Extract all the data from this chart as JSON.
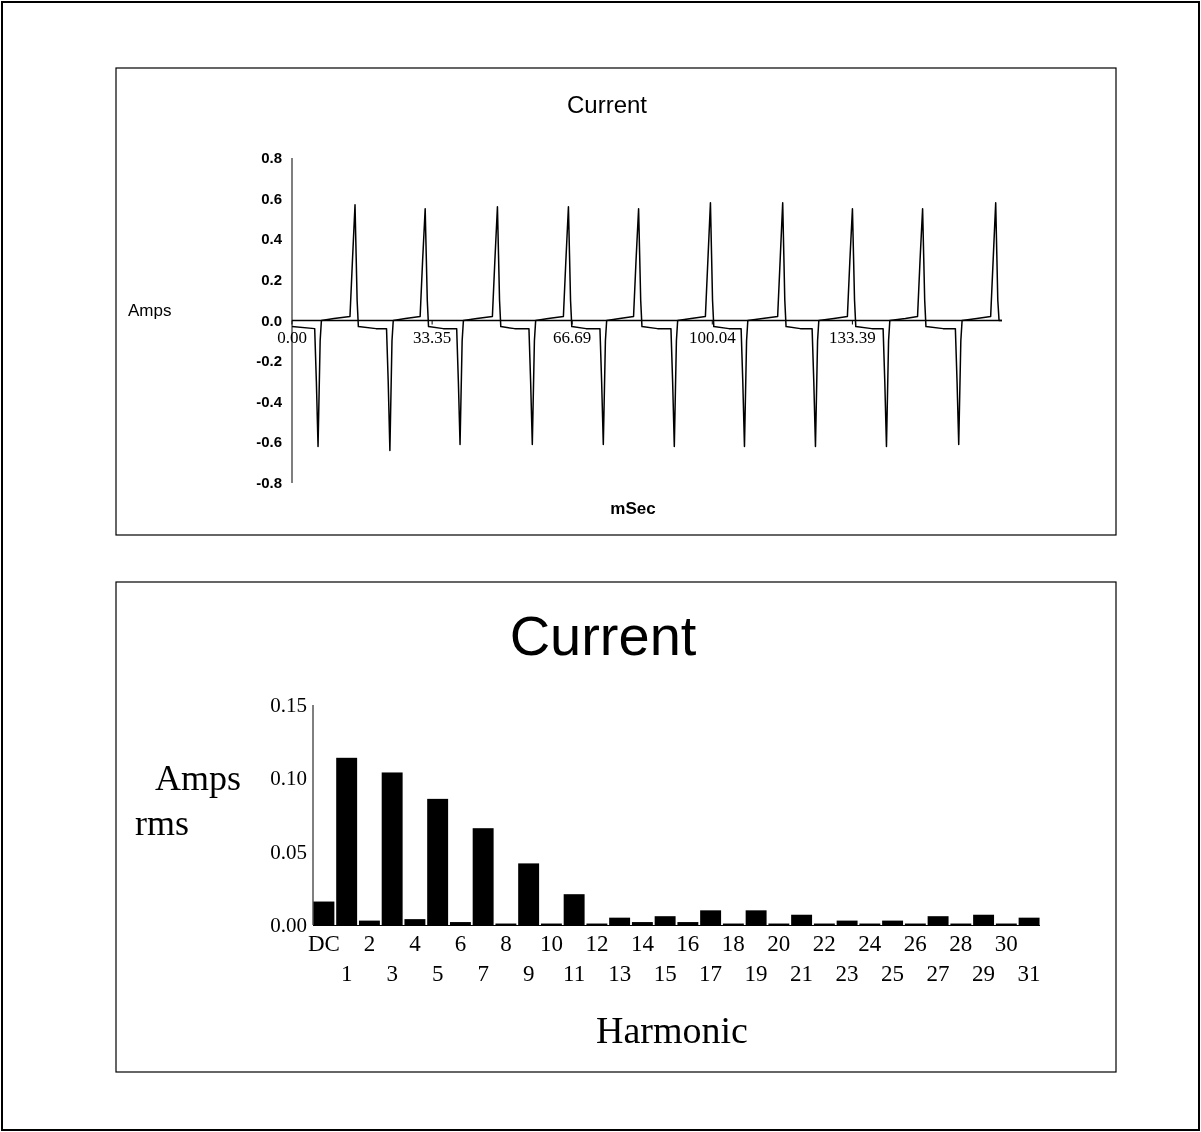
{
  "chart_data": [
    {
      "type": "line",
      "title": "Current",
      "xlabel": "mSec",
      "ylabel": "Amps",
      "color": "#000000",
      "xlim": [
        0,
        169
      ],
      "ylim": [
        -0.8,
        0.8
      ],
      "xticks": [
        {
          "value": 0,
          "label": "0.00"
        },
        33.35,
        66.69,
        100.04,
        133.39
      ],
      "yticks": [
        {
          "value": 0.8,
          "label": "0.8"
        },
        {
          "value": 0.6,
          "label": "0.6"
        },
        {
          "value": 0.4,
          "label": "0.4"
        },
        {
          "value": 0.2,
          "label": "0.2"
        },
        {
          "value": 0,
          "label": "0.0"
        },
        {
          "value": -0.2,
          "label": "-0.2"
        },
        {
          "value": -0.4,
          "label": "-0.4"
        },
        {
          "value": -0.6,
          "label": "-0.6"
        },
        {
          "value": -0.8,
          "label": "-0.8"
        }
      ],
      "grid": false,
      "marker": "none",
      "line_style": "solid",
      "x": [
        0,
        5.4,
        5.8,
        6.2,
        6.7,
        7.0,
        10,
        13.8,
        14.4,
        15.0,
        15.5,
        15.8,
        20,
        22.5,
        22.9,
        23.3,
        23.8,
        24.1,
        27,
        30.5,
        31.1,
        31.7,
        32.2,
        32.5,
        36,
        39.2,
        39.6,
        40.0,
        40.5,
        40.8,
        44,
        47.7,
        48.3,
        48.9,
        49.4,
        49.7,
        53,
        56.4,
        56.8,
        57.2,
        57.7,
        58.0,
        61,
        64.6,
        65.2,
        65.8,
        66.3,
        66.6,
        70,
        73.3,
        73.7,
        74.1,
        74.6,
        74.9,
        78,
        81.3,
        81.9,
        82.5,
        83.0,
        83.3,
        87,
        90.2,
        90.6,
        91.0,
        91.5,
        91.8,
        95,
        98.4,
        99.0,
        99.6,
        100.1,
        100.4,
        104,
        106.9,
        107.3,
        107.7,
        108.2,
        108.5,
        112,
        115.6,
        116.2,
        116.8,
        117.3,
        117.6,
        121,
        123.8,
        124.2,
        124.6,
        125.1,
        125.4,
        129,
        132.2,
        132.8,
        133.4,
        133.9,
        134.2,
        138,
        140.7,
        141.1,
        141.5,
        142.0,
        142.3,
        146,
        148.9,
        149.5,
        150.1,
        150.6,
        150.9,
        155,
        157.9,
        158.3,
        158.7,
        159.2,
        159.5,
        163,
        166.3,
        166.9,
        167.5,
        168.0,
        168.3,
        169
      ],
      "values": [
        -0.03,
        -0.04,
        -0.3,
        -0.62,
        -0.1,
        0.0,
        0.01,
        0.02,
        0.3,
        0.57,
        0.1,
        -0.03,
        -0.04,
        -0.04,
        -0.3,
        -0.64,
        -0.1,
        0.0,
        0.01,
        0.02,
        0.3,
        0.55,
        0.1,
        -0.03,
        -0.04,
        -0.04,
        -0.3,
        -0.61,
        -0.1,
        0.0,
        0.01,
        0.02,
        0.3,
        0.56,
        0.1,
        -0.03,
        -0.04,
        -0.04,
        -0.3,
        -0.61,
        -0.1,
        0.0,
        0.01,
        0.02,
        0.3,
        0.56,
        0.1,
        -0.03,
        -0.04,
        -0.04,
        -0.3,
        -0.61,
        -0.1,
        0.0,
        0.01,
        0.02,
        0.3,
        0.55,
        0.1,
        -0.03,
        -0.04,
        -0.04,
        -0.3,
        -0.62,
        -0.1,
        0.0,
        0.01,
        0.02,
        0.3,
        0.58,
        0.1,
        -0.03,
        -0.04,
        -0.04,
        -0.3,
        -0.62,
        -0.1,
        0.0,
        0.01,
        0.02,
        0.3,
        0.58,
        0.1,
        -0.03,
        -0.04,
        -0.04,
        -0.3,
        -0.62,
        -0.1,
        0.0,
        0.01,
        0.02,
        0.3,
        0.55,
        0.1,
        -0.03,
        -0.04,
        -0.04,
        -0.3,
        -0.62,
        -0.1,
        0.0,
        0.01,
        0.02,
        0.3,
        0.55,
        0.1,
        -0.03,
        -0.04,
        -0.04,
        -0.3,
        -0.61,
        -0.1,
        0.0,
        0.01,
        0.02,
        0.3,
        0.58,
        0.1,
        0.0,
        0.0
      ]
    },
    {
      "type": "bar",
      "title": "Current",
      "xlabel": "Harmonic",
      "ylabel": "Amps rms",
      "color": "#000000",
      "ylim": [
        0,
        0.15
      ],
      "yticks": [
        {
          "value": 0,
          "label": "0.00"
        },
        {
          "value": 0.05,
          "label": "0.05"
        },
        {
          "value": 0.1,
          "label": "0.10"
        },
        {
          "value": 0.15,
          "label": "0.15"
        }
      ],
      "grid": false,
      "categories": [
        "DC",
        "1",
        "2",
        "3",
        "4",
        "5",
        "6",
        "7",
        "8",
        "9",
        "10",
        "11",
        "12",
        "13",
        "14",
        "15",
        "16",
        "17",
        "18",
        "19",
        "20",
        "21",
        "22",
        "23",
        "24",
        "25",
        "26",
        "27",
        "28",
        "29",
        "30",
        "31"
      ],
      "values": [
        0.016,
        0.114,
        0.003,
        0.104,
        0.004,
        0.086,
        0.002,
        0.066,
        0.001,
        0.042,
        0.001,
        0.021,
        0.001,
        0.005,
        0.002,
        0.006,
        0.002,
        0.01,
        0.001,
        0.01,
        0.001,
        0.007,
        0.001,
        0.003,
        0.001,
        0.003,
        0.001,
        0.006,
        0.001,
        0.007,
        0.001,
        0.005
      ]
    }
  ]
}
